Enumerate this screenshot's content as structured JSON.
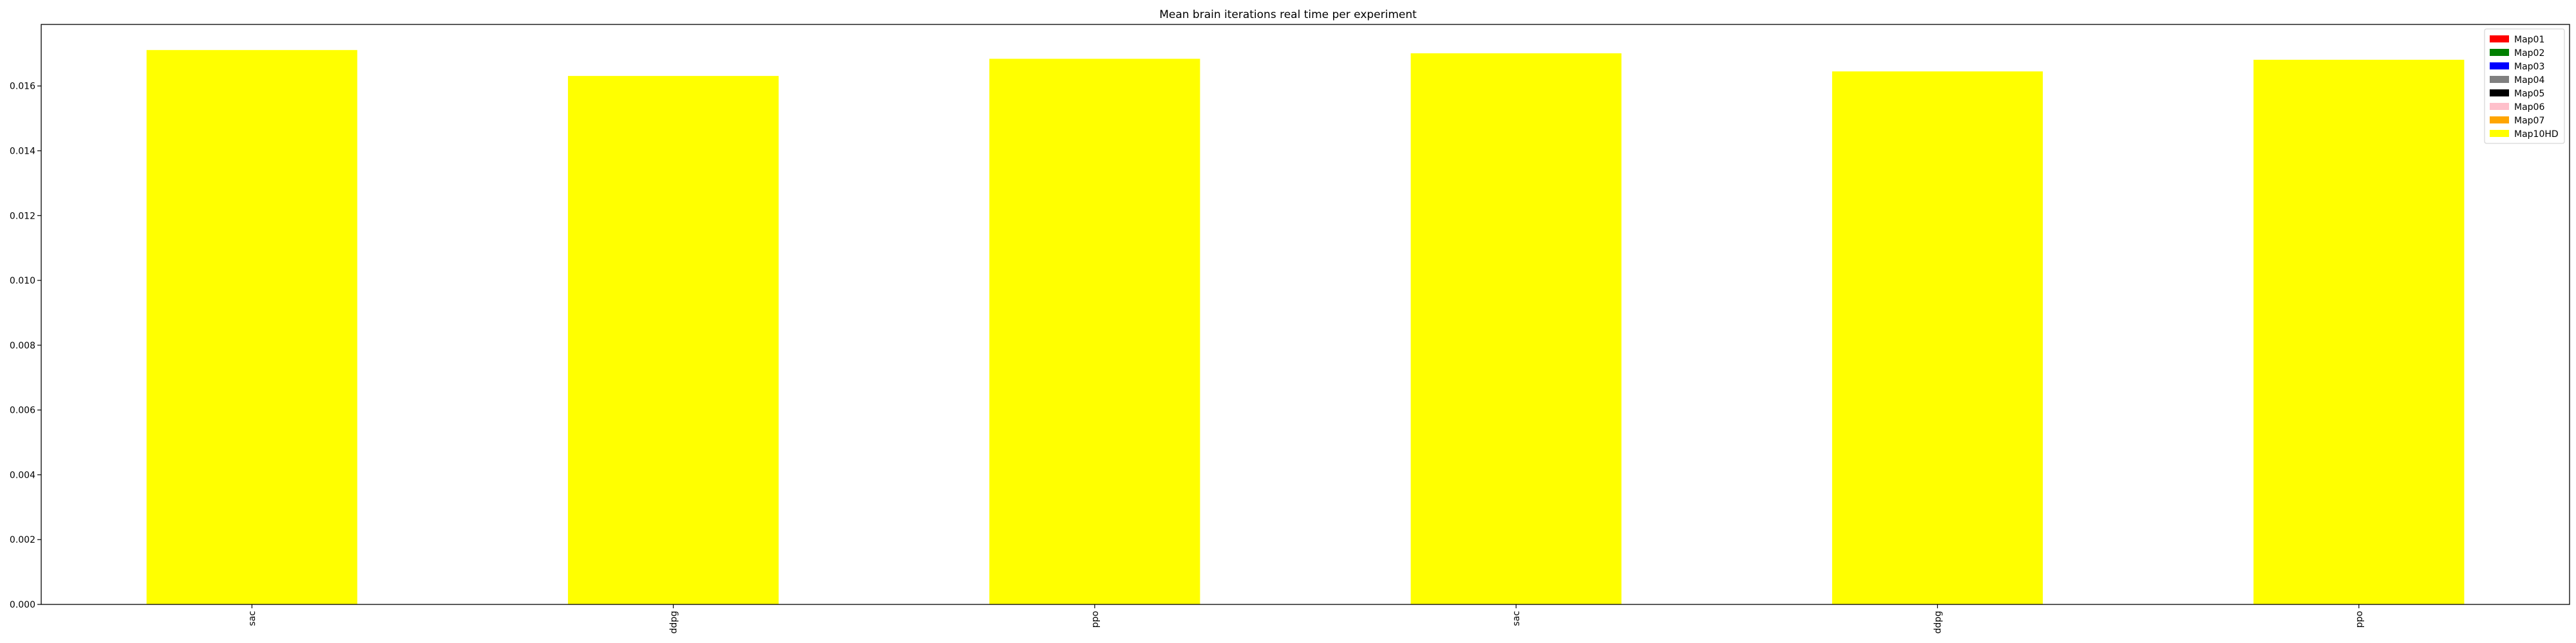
{
  "chart_data": {
    "type": "bar",
    "title": "Mean brain iterations real time per experiment",
    "xlabel": "",
    "ylabel": "",
    "categories": [
      "sac",
      "ddpg",
      "ppo",
      "sac",
      "ddpg",
      "ppo"
    ],
    "ylim": [
      0,
      0.0179
    ],
    "yticks": [
      0.0,
      0.002,
      0.004,
      0.006,
      0.008,
      0.01,
      0.012,
      0.014,
      0.016
    ],
    "ytick_labels": [
      "0.000",
      "0.002",
      "0.004",
      "0.006",
      "0.008",
      "0.010",
      "0.012",
      "0.014",
      "0.016"
    ],
    "series": [
      {
        "name": "Map10HD",
        "color": "#ffff00",
        "values": [
          0.01711,
          0.01631,
          0.01684,
          0.01701,
          0.01645,
          0.01681
        ]
      }
    ],
    "legend": {
      "placement": "top-right",
      "entries": [
        {
          "label": "Map01",
          "color": "#ff0000"
        },
        {
          "label": "Map02",
          "color": "#008000"
        },
        {
          "label": "Map03",
          "color": "#0000ff"
        },
        {
          "label": "Map04",
          "color": "#808080"
        },
        {
          "label": "Map05",
          "color": "#000000"
        },
        {
          "label": "Map06",
          "color": "#ffc0cb"
        },
        {
          "label": "Map07",
          "color": "#ffa500"
        },
        {
          "label": "Map10HD",
          "color": "#ffff00"
        }
      ]
    },
    "grid": false
  }
}
